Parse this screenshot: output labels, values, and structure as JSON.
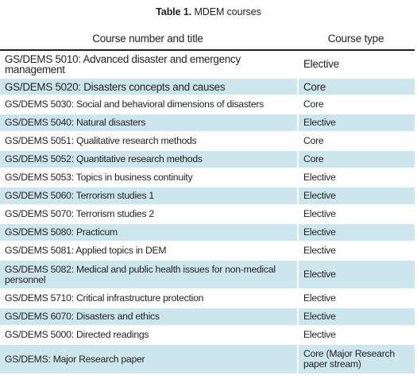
{
  "table": {
    "caption_label": "Table 1.",
    "caption_text": " MDEM courses",
    "header_title": "Course number and title",
    "header_type": "Course type",
    "rows": [
      {
        "title": "GS/DEMS 5010: Advanced disaster and emergency management",
        "type": "Elective"
      },
      {
        "title": "GS/DEMS 5020: Disasters concepts and causes",
        "type": "Core"
      },
      {
        "title": "GS/DEMS 5030: Social and behavioral dimensions of disasters",
        "type": "Core"
      },
      {
        "title": "GS/DEMS 5040: Natural disasters",
        "type": "Elective"
      },
      {
        "title": "GS/DEMS 5051: Qualitative research methods",
        "type": "Core"
      },
      {
        "title": "GS/DEMS 5052: Quantitative research methods",
        "type": "Core"
      },
      {
        "title": "GS/DEMS 5053: Topics in business continuity",
        "type": "Elective"
      },
      {
        "title": "GS/DEMS 5060: Terrorism studies 1",
        "type": "Elective"
      },
      {
        "title": "GS/DEMS 5070: Terrorism studies 2",
        "type": "Elective"
      },
      {
        "title": "GS/DEMS 5080: Practicum",
        "type": "Elective"
      },
      {
        "title": "GS/DEMS 5081: Applied topics in DEM",
        "type": "Elective"
      },
      {
        "title": "GS/DEMS 5082: Medical and public health issues for non-medical personnel",
        "type": "Elective"
      },
      {
        "title": "GS/DEMS 5710: Critical infrastructure protection",
        "type": "Elective"
      },
      {
        "title": "GS/DEMS 6070: Disasters and ethics",
        "type": "Elective"
      },
      {
        "title": "GS/DEMS 5000: Directed readings",
        "type": "Elective"
      },
      {
        "title": "GS/DEMS: Major Research paper",
        "type": "Core (Major Research paper stream)"
      }
    ]
  },
  "colors": {
    "alt_row": "#cde6ee",
    "text": "#231f20"
  }
}
